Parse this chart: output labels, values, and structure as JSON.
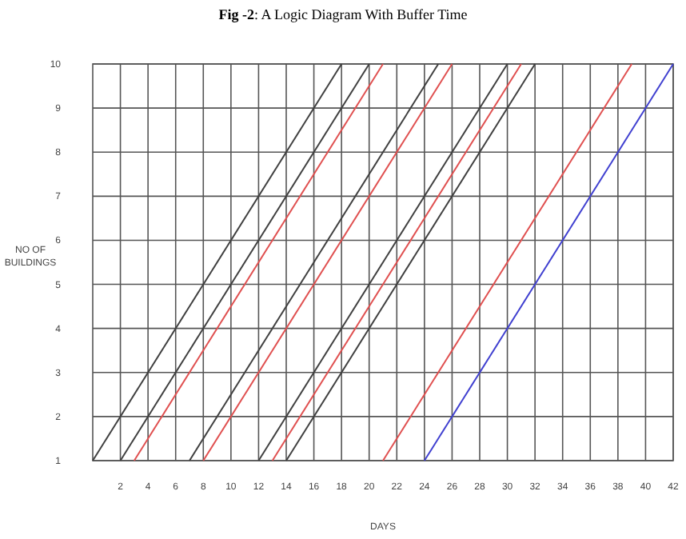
{
  "chart_data": {
    "type": "line",
    "title": "Fig -2: A Logic Diagram With Buffer Time",
    "xlabel": "DAYS",
    "ylabel": "NO OF BUILDINGS",
    "xlim": [
      0,
      42
    ],
    "xticks": [
      2,
      4,
      6,
      8,
      10,
      12,
      14,
      16,
      18,
      20,
      22,
      24,
      26,
      28,
      30,
      32,
      34,
      36,
      38,
      40,
      42
    ],
    "ylim": [
      1,
      10
    ],
    "yticks": [
      1,
      2,
      3,
      4,
      5,
      6,
      7,
      8,
      9,
      10
    ],
    "grid": true,
    "marker": "none",
    "line_style": "solid",
    "series": [
      {
        "color": "#404040",
        "x": [
          0,
          18
        ],
        "values": [
          1,
          10
        ]
      },
      {
        "color": "#404040",
        "x": [
          2,
          20
        ],
        "values": [
          1,
          10
        ]
      },
      {
        "color": "#e05050",
        "x": [
          3,
          21
        ],
        "values": [
          1,
          10
        ]
      },
      {
        "color": "#404040",
        "x": [
          7,
          25
        ],
        "values": [
          1,
          10
        ]
      },
      {
        "color": "#e05050",
        "x": [
          8,
          26
        ],
        "values": [
          1,
          10
        ]
      },
      {
        "color": "#404040",
        "x": [
          12,
          30
        ],
        "values": [
          1,
          10
        ]
      },
      {
        "color": "#e05050",
        "x": [
          13,
          31
        ],
        "values": [
          1,
          10
        ]
      },
      {
        "color": "#404040",
        "x": [
          14,
          32
        ],
        "values": [
          1,
          10
        ]
      },
      {
        "color": "#e05050",
        "x": [
          21,
          39
        ],
        "values": [
          1,
          10
        ]
      },
      {
        "color": "#4040d0",
        "x": [
          24,
          42
        ],
        "values": [
          1,
          10
        ]
      }
    ]
  }
}
